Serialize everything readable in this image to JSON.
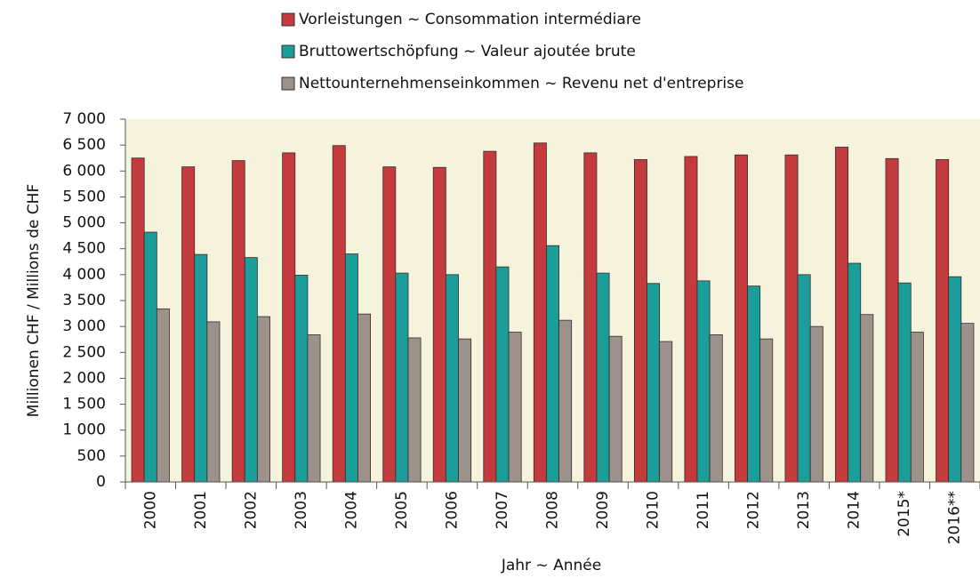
{
  "chart_data": {
    "type": "bar",
    "x_label": "Jahr ~ Année",
    "y_label": "Millionen CHF / Millions de CHF",
    "categories": [
      "2000",
      "2001",
      "2002",
      "2003",
      "2004",
      "2005",
      "2006",
      "2007",
      "2008",
      "2009",
      "2010",
      "2011",
      "2012",
      "2013",
      "2014",
      "2015*",
      "2016**"
    ],
    "series": [
      {
        "name": "Vorleistungen ~ Consommation intermédiare",
        "color": "#c43b3d",
        "values": [
          6250,
          6080,
          6200,
          6350,
          6490,
          6080,
          6070,
          6380,
          6540,
          6350,
          6220,
          6280,
          6310,
          6310,
          6460,
          6240,
          6220
        ]
      },
      {
        "name": "Bruttowertschöpfung ~ Valeur ajoutée brute",
        "color": "#1b9d99",
        "values": [
          4820,
          4390,
          4330,
          3990,
          4400,
          4030,
          4000,
          4150,
          4560,
          4030,
          3830,
          3880,
          3780,
          4000,
          4220,
          3840,
          3960
        ]
      },
      {
        "name": "Nettounternehmenseinkommen ~ Revenu net d'entreprise",
        "color": "#9c928b",
        "values": [
          3340,
          3090,
          3190,
          2840,
          3240,
          2780,
          2760,
          2890,
          3120,
          2810,
          2710,
          2840,
          2760,
          3000,
          3230,
          2890,
          3060
        ]
      }
    ],
    "ylim": [
      0,
      7000
    ],
    "yticks": [
      0,
      500,
      {
        "value": 1000,
        "label": "1 000"
      },
      {
        "value": 1500,
        "label": "1 500"
      },
      {
        "value": 2000,
        "label": "2 000"
      },
      {
        "value": 2500,
        "label": "2 500"
      },
      {
        "value": 3000,
        "label": "3 000"
      },
      {
        "value": 3500,
        "label": "3 500"
      },
      {
        "value": 4000,
        "label": "4 000"
      },
      {
        "value": 4500,
        "label": "4 500"
      },
      {
        "value": 5000,
        "label": "5 000"
      },
      {
        "value": 5500,
        "label": "5 500"
      },
      {
        "value": 6000,
        "label": "6 000"
      },
      {
        "value": 6500,
        "label": "6 500"
      },
      {
        "value": 7000,
        "label": "7 000"
      }
    ],
    "grid": false
  }
}
